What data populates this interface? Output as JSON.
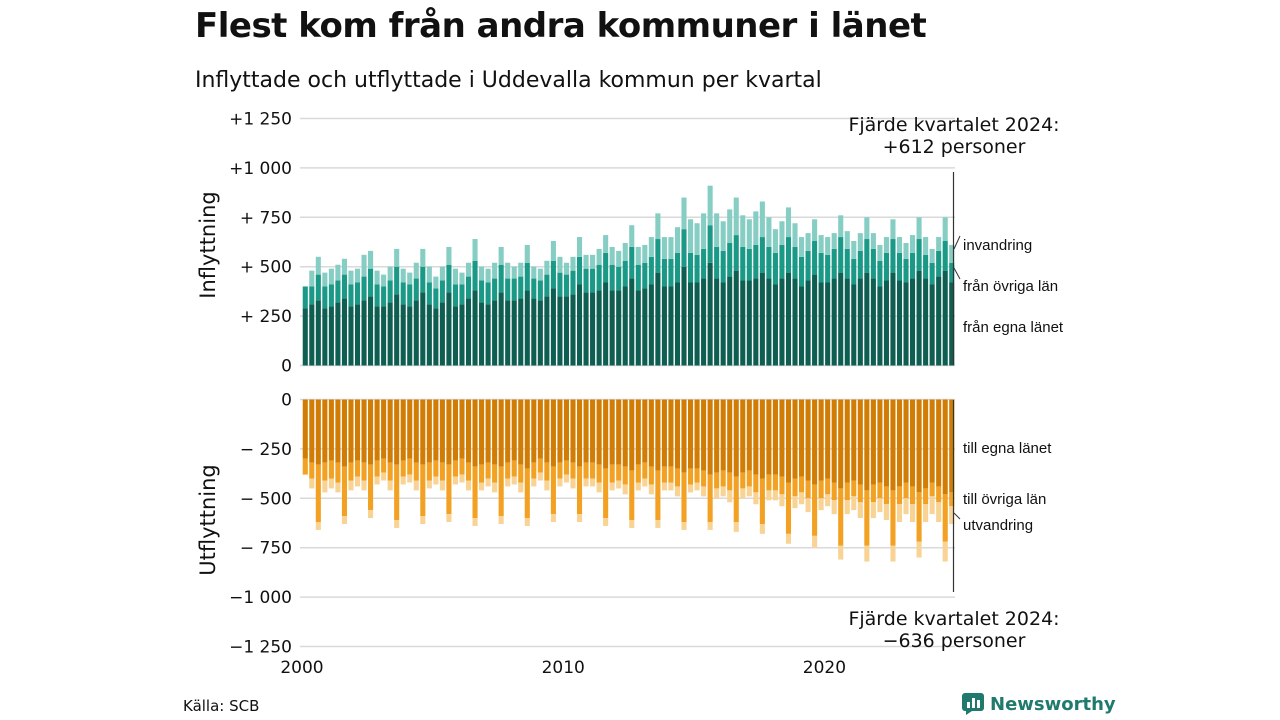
{
  "title": "Flest kom från andra kommuner i länet",
  "subtitle": "Inflyttade och utflyttade i Uddevalla kommun per kvartal",
  "source": "Källa: SCB",
  "brand": "Newsworthy",
  "chart_data": {
    "type": "bar",
    "stacked": true,
    "x_label_years": [
      "2000",
      "2010",
      "2020"
    ],
    "x_range": [
      "2000Q1",
      "2024Q4"
    ],
    "ylim": [
      -1250,
      1250
    ],
    "grid": true,
    "panels": [
      {
        "name": "Inflyttning",
        "ticks": [
          "+1 250",
          "+1 000",
          "+ 750",
          "+ 500",
          "+ 250",
          "0"
        ],
        "tick_values": [
          1250,
          1000,
          750,
          500,
          250,
          0
        ],
        "annotation": [
          "Fjärde kvartalet 2024:",
          "+612 personer"
        ],
        "series": [
          {
            "name": "från egna länet",
            "color": "#0f5e52",
            "values": [
              290,
              310,
              330,
              290,
              300,
              320,
              340,
              300,
              310,
              330,
              350,
              300,
              300,
              320,
              360,
              310,
              300,
              330,
              370,
              310,
              290,
              320,
              370,
              300,
              310,
              340,
              380,
              320,
              310,
              330,
              370,
              330,
              330,
              340,
              380,
              340,
              330,
              350,
              390,
              350,
              350,
              360,
              410,
              370,
              370,
              380,
              420,
              380,
              380,
              400,
              440,
              380,
              390,
              410,
              470,
              400,
              400,
              420,
              500,
              420,
              420,
              440,
              520,
              440,
              420,
              450,
              480,
              430,
              430,
              440,
              470,
              440,
              410,
              440,
              470,
              440,
              400,
              430,
              460,
              420,
              420,
              440,
              470,
              440,
              410,
              440,
              470,
              440,
              400,
              430,
              470,
              430,
              420,
              440,
              480,
              440,
              410,
              450,
              480,
              420
            ]
          },
          {
            "name": "från övriga län",
            "color": "#1a9987",
            "values": [
              110,
              90,
              130,
              110,
              110,
              110,
              120,
              110,
              110,
              120,
              140,
              110,
              100,
              110,
              140,
              110,
              110,
              110,
              130,
              110,
              100,
              110,
              140,
              110,
              100,
              110,
              150,
              110,
              110,
              110,
              140,
              110,
              110,
              110,
              140,
              100,
              100,
              110,
              140,
              120,
              110,
              120,
              140,
              120,
              120,
              130,
              150,
              130,
              120,
              130,
              160,
              130,
              130,
              140,
              170,
              140,
              140,
              150,
              190,
              150,
              140,
              150,
              190,
              160,
              160,
              170,
              180,
              170,
              160,
              170,
              180,
              160,
              160,
              170,
              180,
              160,
              150,
              150,
              170,
              150,
              140,
              150,
              180,
              150,
              130,
              140,
              170,
              150,
              130,
              140,
              170,
              140,
              120,
              130,
              160,
              120,
              110,
              130,
              150,
              100
            ]
          },
          {
            "name": "invandring",
            "color": "#86cec4",
            "values": [
              0,
              80,
              90,
              70,
              80,
              80,
              80,
              70,
              70,
              110,
              90,
              70,
              60,
              70,
              90,
              70,
              60,
              80,
              90,
              80,
              60,
              70,
              90,
              80,
              60,
              70,
              110,
              70,
              70,
              80,
              90,
              80,
              60,
              70,
              90,
              60,
              60,
              70,
              100,
              80,
              60,
              70,
              100,
              70,
              70,
              80,
              90,
              90,
              80,
              90,
              110,
              90,
              90,
              100,
              130,
              110,
              110,
              130,
              160,
              170,
              160,
              180,
              200,
              170,
              150,
              170,
              190,
              160,
              150,
              170,
              180,
              150,
              120,
              120,
              150,
              120,
              100,
              90,
              110,
              90,
              90,
              80,
              110,
              90,
              90,
              90,
              110,
              80,
              80,
              80,
              100,
              80,
              80,
              90,
              110,
              90,
              70,
              70,
              120,
              90
            ]
          }
        ],
        "labels": [
          "invandring",
          "från övriga län",
          "från egna länet"
        ]
      },
      {
        "name": "Utflyttning",
        "ticks": [
          "0",
          "− 250",
          "− 500",
          "− 750",
          "−1 000",
          "−1 250"
        ],
        "tick_values": [
          0,
          -250,
          -500,
          -750,
          -1000,
          -1250
        ],
        "annotation": [
          "Fjärde kvartalet 2024:",
          "−636 personer"
        ],
        "series": [
          {
            "name": "till egna länet",
            "color": "#d17d05",
            "values": [
              -300,
              -320,
              -330,
              -320,
              -310,
              -320,
              -340,
              -320,
              -310,
              -320,
              -330,
              -310,
              -300,
              -320,
              -330,
              -310,
              -300,
              -320,
              -330,
              -320,
              -310,
              -320,
              -330,
              -310,
              -300,
              -320,
              -340,
              -330,
              -320,
              -330,
              -340,
              -320,
              -310,
              -330,
              -350,
              -320,
              -300,
              -320,
              -340,
              -320,
              -310,
              -320,
              -340,
              -320,
              -320,
              -330,
              -350,
              -330,
              -330,
              -340,
              -360,
              -330,
              -320,
              -340,
              -360,
              -340,
              -340,
              -350,
              -370,
              -350,
              -350,
              -360,
              -380,
              -370,
              -360,
              -370,
              -390,
              -370,
              -360,
              -380,
              -400,
              -380,
              -380,
              -390,
              -420,
              -400,
              -390,
              -410,
              -430,
              -410,
              -400,
              -420,
              -450,
              -420,
              -410,
              -430,
              -460,
              -430,
              -420,
              -440,
              -460,
              -440,
              -420,
              -440,
              -470,
              -450,
              -420,
              -440,
              -480,
              -470
            ]
          },
          {
            "name": "till övriga län",
            "color": "#f2a122",
            "values": [
              -80,
              -80,
              -290,
              -90,
              -90,
              -100,
              -250,
              -90,
              -80,
              -90,
              -230,
              -80,
              -70,
              -90,
              -280,
              -80,
              -80,
              -90,
              -260,
              -90,
              -80,
              -90,
              -250,
              -80,
              -80,
              -90,
              -260,
              -90,
              -80,
              -90,
              -250,
              -80,
              -80,
              -90,
              -250,
              -80,
              -70,
              -90,
              -240,
              -80,
              -70,
              -80,
              -240,
              -80,
              -80,
              -90,
              -250,
              -90,
              -80,
              -90,
              -250,
              -90,
              -80,
              -90,
              -250,
              -80,
              -80,
              -90,
              -250,
              -80,
              -70,
              -80,
              -240,
              -80,
              -80,
              -90,
              -230,
              -80,
              -80,
              -90,
              -230,
              -80,
              -80,
              -90,
              -260,
              -90,
              -80,
              -90,
              -260,
              -90,
              -80,
              -90,
              -290,
              -90,
              -80,
              -90,
              -280,
              -90,
              -80,
              -90,
              -280,
              -90,
              -80,
              -90,
              -250,
              -80,
              -70,
              -80,
              -240,
              -70
            ]
          },
          {
            "name": "utvandring",
            "color": "#f8d394",
            "values": [
              0,
              -50,
              -40,
              -60,
              -50,
              -50,
              -40,
              -50,
              -50,
              -50,
              -40,
              -40,
              -40,
              -50,
              -40,
              -40,
              -40,
              -50,
              -40,
              -40,
              -40,
              -50,
              -40,
              -40,
              -40,
              -50,
              -40,
              -40,
              -40,
              -50,
              -40,
              -40,
              -40,
              -50,
              -40,
              -40,
              -40,
              -50,
              -40,
              -40,
              -40,
              -50,
              -40,
              -40,
              -40,
              -50,
              -40,
              -40,
              -40,
              -50,
              -40,
              -40,
              -40,
              -50,
              -40,
              -40,
              -40,
              -50,
              -40,
              -40,
              -40,
              -50,
              -40,
              -50,
              -50,
              -60,
              -50,
              -50,
              -50,
              -60,
              -50,
              -50,
              -50,
              -60,
              -50,
              -60,
              -60,
              -70,
              -60,
              -60,
              -60,
              -70,
              -70,
              -70,
              -70,
              -80,
              -80,
              -80,
              -70,
              -80,
              -80,
              -90,
              -80,
              -90,
              -80,
              -90,
              -90,
              -100,
              -100,
              -90
            ]
          }
        ],
        "labels": [
          "till egna länet",
          "till övriga län",
          "utvandring"
        ]
      }
    ]
  }
}
